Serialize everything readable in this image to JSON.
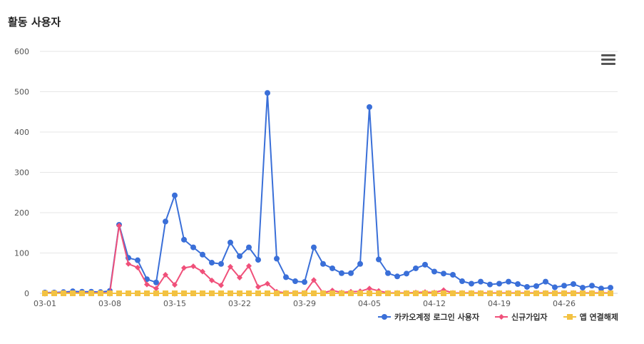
{
  "page": {
    "title": "활동 사용자"
  },
  "chart_data": {
    "type": "line",
    "title": "활동 사용자",
    "ylim": [
      0,
      600
    ],
    "y_ticks": [
      0,
      100,
      200,
      300,
      400,
      500,
      600
    ],
    "x_tick_labels": [
      "03-01",
      "03-08",
      "03-15",
      "03-22",
      "03-29",
      "04-05",
      "04-12",
      "04-19",
      "04-26"
    ],
    "x_tick_index": [
      0,
      7,
      14,
      21,
      28,
      35,
      42,
      49,
      56
    ],
    "grid": true,
    "legend_position": "bottom-right",
    "series": [
      {
        "name": "카카오계정 로그인 사용자",
        "color": "#3a6fd8",
        "marker": "circle",
        "values": [
          2,
          2,
          3,
          5,
          4,
          4,
          3,
          6,
          170,
          88,
          82,
          35,
          27,
          178,
          243,
          133,
          114,
          96,
          76,
          73,
          126,
          92,
          114,
          83,
          497,
          86,
          40,
          30,
          28,
          114,
          73,
          62,
          50,
          50,
          73,
          462,
          84,
          50,
          42,
          49,
          62,
          71,
          54,
          49,
          46,
          30,
          24,
          29,
          22,
          24,
          29,
          23,
          16,
          18,
          29,
          15,
          19,
          23,
          14,
          19,
          12,
          14
        ]
      },
      {
        "name": "신규가입자",
        "color": "#f0507a",
        "marker": "diamond",
        "values": [
          1,
          1,
          1,
          1,
          1,
          1,
          1,
          1,
          168,
          73,
          64,
          22,
          12,
          46,
          21,
          63,
          67,
          54,
          32,
          20,
          66,
          39,
          68,
          16,
          24,
          4,
          1,
          1,
          1,
          33,
          1,
          7,
          2,
          4,
          5,
          12,
          6,
          1,
          1,
          1,
          2,
          3,
          2,
          8,
          1,
          1,
          1,
          1,
          1,
          1,
          1,
          1,
          1,
          1,
          1,
          1,
          1,
          1,
          1,
          1,
          1,
          1
        ]
      },
      {
        "name": "앱 연결해제",
        "color": "#f3c242",
        "marker": "square",
        "values": [
          0,
          0,
          0,
          0,
          0,
          0,
          0,
          0,
          0,
          0,
          0,
          0,
          0,
          0,
          0,
          0,
          0,
          0,
          0,
          0,
          0,
          0,
          0,
          0,
          0,
          0,
          0,
          0,
          0,
          0,
          0,
          0,
          0,
          0,
          0,
          0,
          0,
          0,
          0,
          0,
          0,
          0,
          0,
          0,
          0,
          0,
          0,
          0,
          0,
          0,
          0,
          0,
          0,
          0,
          0,
          0,
          0,
          0,
          0,
          0,
          0,
          0
        ]
      }
    ]
  }
}
